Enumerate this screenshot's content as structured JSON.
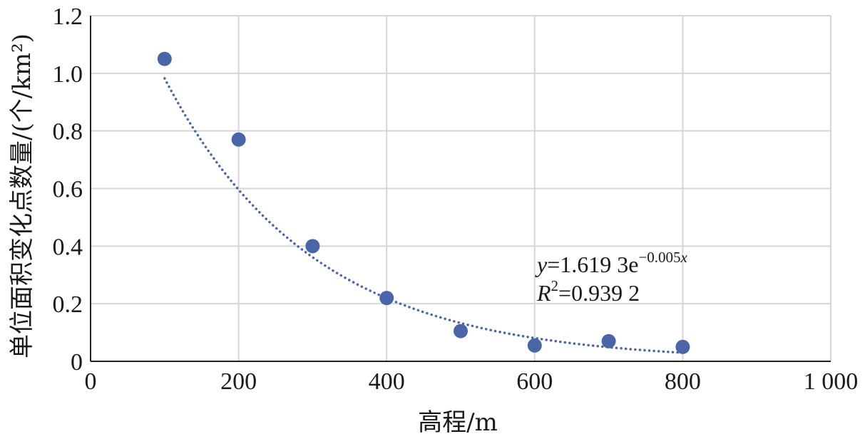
{
  "chart_data": {
    "type": "scatter",
    "xlabel": "高程/m",
    "ylabel": "单位面积变化点数量/(个/km²)",
    "xlim": [
      0,
      1000
    ],
    "ylim": [
      0,
      1.2
    ],
    "x_ticks": [
      0,
      200,
      400,
      600,
      800,
      1000
    ],
    "x_tick_labels": [
      "0",
      "200",
      "400",
      "600",
      "800",
      "1 000"
    ],
    "y_ticks": [
      0,
      0.2,
      0.4,
      0.6,
      0.8,
      1.0,
      1.2
    ],
    "y_tick_labels": [
      "0",
      "0.2",
      "0.4",
      "0.6",
      "0.8",
      "1.0",
      "1.2"
    ],
    "grid": true,
    "point_color": "#4a66a8",
    "series": [
      {
        "x": [
          100,
          200,
          300,
          400,
          500,
          600,
          700,
          800
        ],
        "y": [
          1.05,
          0.77,
          0.4,
          0.22,
          0.105,
          0.055,
          0.07,
          0.05
        ]
      }
    ],
    "trendline": {
      "type": "exponential",
      "a": 1.6193,
      "b": -0.005,
      "x_range": [
        100,
        800
      ],
      "style": "dotted",
      "equation": {
        "y_var": "y",
        "coef": "=1.619 3e",
        "exponent": "−0.005",
        "exponent_var": "x"
      },
      "r2": {
        "var": "R",
        "sup": "2",
        "value": "=0.939 2"
      }
    }
  }
}
